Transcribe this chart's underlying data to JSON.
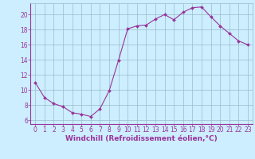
{
  "x": [
    0,
    1,
    2,
    3,
    4,
    5,
    6,
    7,
    8,
    9,
    10,
    11,
    12,
    13,
    14,
    15,
    16,
    17,
    18,
    19,
    20,
    21,
    22,
    23
  ],
  "y": [
    11.0,
    9.0,
    8.2,
    7.8,
    7.0,
    6.8,
    6.5,
    7.5,
    9.9,
    13.9,
    18.1,
    18.5,
    18.6,
    19.4,
    20.0,
    19.3,
    20.3,
    20.9,
    21.0,
    19.7,
    18.5,
    17.5,
    16.5,
    16.0
  ],
  "line_color": "#993399",
  "marker": "D",
  "marker_size": 2,
  "bg_color": "#cceeff",
  "grid_color": "#99bbcc",
  "xlabel": "Windchill (Refroidissement éolien,°C)",
  "xlabel_color": "#993399",
  "ylim": [
    5.5,
    21.5
  ],
  "xlim": [
    -0.5,
    23.5
  ],
  "yticks": [
    6,
    8,
    10,
    12,
    14,
    16,
    18,
    20
  ],
  "xticks": [
    0,
    1,
    2,
    3,
    4,
    5,
    6,
    7,
    8,
    9,
    10,
    11,
    12,
    13,
    14,
    15,
    16,
    17,
    18,
    19,
    20,
    21,
    22,
    23
  ],
  "tick_color": "#993399",
  "tick_fontsize": 5.5,
  "xlabel_fontsize": 6.5
}
